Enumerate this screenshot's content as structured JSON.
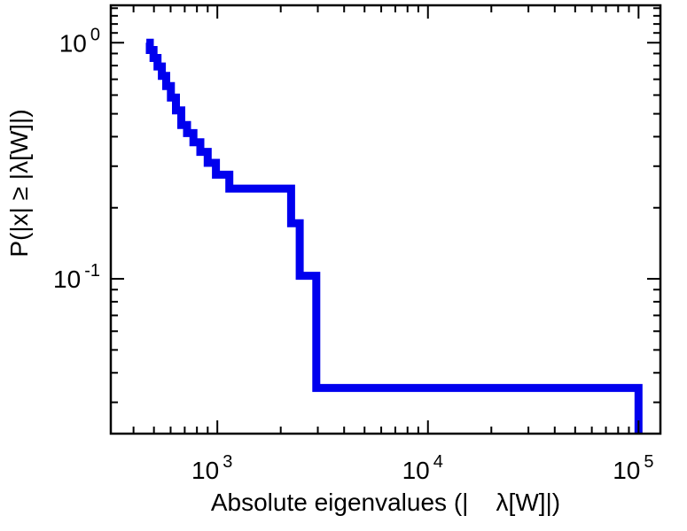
{
  "chart_data": {
    "type": "line",
    "style": "step-ccdf",
    "title": "",
    "xlabel": "Absolute eigenvalues (|    λ[W]|)",
    "ylabel": "P(|x| ≥ |λ[W]|)",
    "xscale": "log",
    "yscale": "log",
    "xlim": [
      312,
      127000
    ],
    "ylim": [
      0.0221,
      1.44
    ],
    "grid": false,
    "legend": null,
    "frame_color": "#000000",
    "line": {
      "color": "#0000ee",
      "width": 9
    },
    "xticks": [
      {
        "label_base": "10",
        "label_exp": "3",
        "value": 1000
      },
      {
        "label_base": "10",
        "label_exp": "4",
        "value": 10000
      },
      {
        "label_base": "10",
        "label_exp": "5",
        "value": 100000
      }
    ],
    "yticks": [
      {
        "label_base": "10",
        "label_exp": "0",
        "value": 1
      },
      {
        "label_base": "10",
        "label_exp": "-1",
        "value": 0.1
      }
    ],
    "ccdf_steps": [
      {
        "x": 460,
        "p": 1.0
      },
      {
        "x": 478,
        "p": 0.931
      },
      {
        "x": 498,
        "p": 0.862
      },
      {
        "x": 520,
        "p": 0.793
      },
      {
        "x": 545,
        "p": 0.724
      },
      {
        "x": 572,
        "p": 0.655
      },
      {
        "x": 602,
        "p": 0.586
      },
      {
        "x": 636,
        "p": 0.517
      },
      {
        "x": 674,
        "p": 0.448
      },
      {
        "x": 718,
        "p": 0.414
      },
      {
        "x": 770,
        "p": 0.379
      },
      {
        "x": 830,
        "p": 0.345
      },
      {
        "x": 900,
        "p": 0.31
      },
      {
        "x": 985,
        "p": 0.276
      },
      {
        "x": 1140,
        "p": 0.241
      },
      {
        "x": 2240,
        "p": 0.172
      },
      {
        "x": 2460,
        "p": 0.103
      },
      {
        "x": 2950,
        "p": 0.0345
      }
    ],
    "x_max_eigenvalue": 100000
  }
}
